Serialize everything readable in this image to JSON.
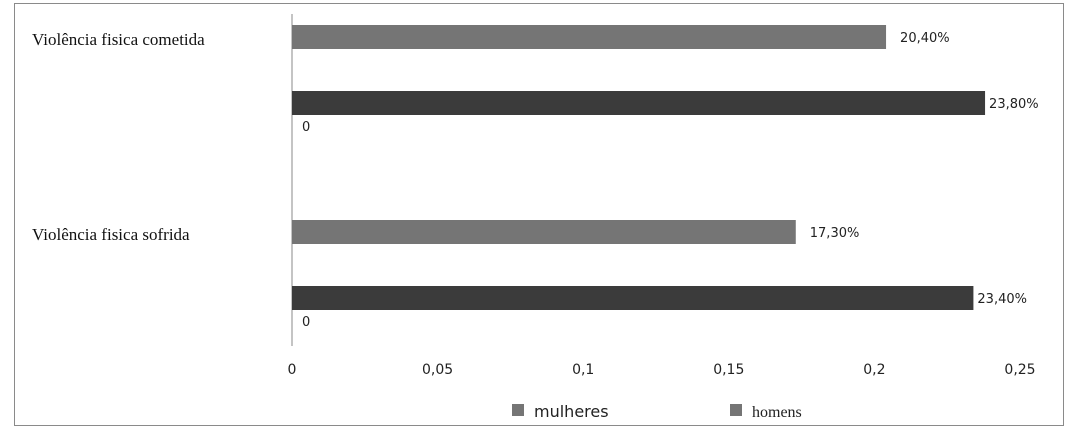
{
  "chart_data": {
    "type": "bar",
    "orientation": "horizontal",
    "categories": [
      "Violência fisica cometida",
      "Violência fisica sofrida"
    ],
    "series": [
      {
        "name": "mulheres",
        "values": [
          0.204,
          0.173
        ],
        "data_labels": [
          "20,40%",
          "17,30%"
        ],
        "color": "#757575"
      },
      {
        "name": "homens",
        "values": [
          0.238,
          0.234
        ],
        "data_labels": [
          "23,80%",
          "23,40%"
        ],
        "color": "#3b3b3b"
      }
    ],
    "zero_labels": [
      "0",
      "0"
    ],
    "xlim": [
      0,
      0.25
    ],
    "x_ticks": [
      0,
      0.05,
      0.1,
      0.15,
      0.2,
      0.25
    ],
    "x_tick_labels": [
      "0",
      "0,05",
      "0,1",
      "0,15",
      "0,2",
      "0,25"
    ],
    "legend_position": "bottom",
    "legend_marker_colors": [
      "#757575",
      "#757575"
    ],
    "grid": false,
    "title": "",
    "xlabel": "",
    "ylabel": ""
  }
}
